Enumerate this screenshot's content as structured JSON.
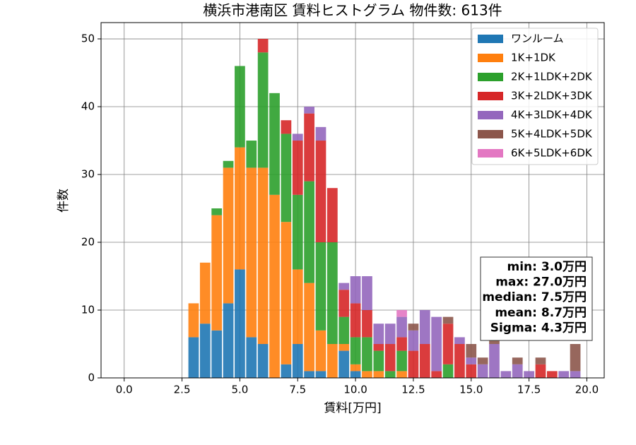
{
  "chart_data": {
    "type": "histogram",
    "stacked": true,
    "title": "横浜市港南区 賃料ヒストグラム 物件数: 613件",
    "xlabel": "賃料[万円]",
    "ylabel": "件数",
    "bins": [
      2.75,
      3.25,
      3.75,
      4.25,
      4.75,
      5.25,
      5.75,
      6.25,
      6.75,
      7.25,
      7.75,
      8.25,
      8.75,
      9.25,
      9.75,
      10.25,
      10.75,
      11.25,
      11.75,
      12.25,
      12.75,
      13.25,
      13.75,
      14.25,
      14.75,
      15.25,
      15.75,
      16.25,
      16.75,
      17.25,
      17.75,
      18.25,
      18.75,
      19.25,
      19.75
    ],
    "series": [
      {
        "name": "ワンルーム",
        "color": "#1f77b4",
        "values": [
          6,
          8,
          7,
          11,
          16,
          6,
          5,
          0,
          2,
          5,
          1,
          1,
          0,
          4,
          1,
          0,
          0,
          0,
          0,
          0,
          0,
          0,
          0,
          0,
          0,
          0,
          0,
          0,
          0,
          0,
          0,
          0,
          0,
          0
        ]
      },
      {
        "name": "1K+1DK",
        "color": "#ff7f0e",
        "values": [
          5,
          9,
          17,
          20,
          18,
          25,
          26,
          27,
          21,
          11,
          13,
          6,
          5,
          1,
          1,
          1,
          1,
          0,
          1,
          0,
          0,
          0,
          0,
          0,
          0,
          0,
          0,
          0,
          0,
          0,
          0,
          0,
          0,
          0
        ]
      },
      {
        "name": "2K+1LDK+2DK",
        "color": "#2ca02c",
        "values": [
          0,
          0,
          1,
          1,
          12,
          4,
          17,
          15,
          13,
          11,
          15,
          13,
          15,
          4,
          4,
          5,
          3,
          1,
          3,
          0,
          0,
          0,
          2,
          0,
          0,
          0,
          0,
          0,
          0,
          0,
          0,
          0,
          0,
          0
        ]
      },
      {
        "name": "3K+2LDK+3DK",
        "color": "#d62728",
        "values": [
          0,
          0,
          0,
          0,
          0,
          0,
          2,
          0,
          2,
          8,
          10,
          15,
          8,
          4,
          5,
          4,
          1,
          4,
          2,
          4,
          5,
          1,
          6,
          5,
          2,
          0,
          0,
          0,
          0,
          0,
          2,
          1,
          0,
          0
        ]
      },
      {
        "name": "4K+3LDK+4DK",
        "color": "#9467bd",
        "values": [
          0,
          0,
          0,
          0,
          0,
          0,
          0,
          0,
          0,
          1,
          1,
          2,
          0,
          1,
          4,
          5,
          3,
          3,
          3,
          3,
          5,
          8,
          0,
          1,
          1,
          2,
          5,
          1,
          2,
          1,
          0,
          0,
          1,
          1
        ]
      },
      {
        "name": "5K+4LDK+5DK",
        "color": "#8c564b",
        "values": [
          0,
          0,
          0,
          0,
          0,
          0,
          0,
          0,
          0,
          0,
          0,
          0,
          0,
          0,
          0,
          0,
          0,
          0,
          0,
          1,
          0,
          0,
          1,
          0,
          2,
          1,
          1,
          0,
          1,
          0,
          1,
          0,
          0,
          4
        ]
      },
      {
        "name": "6K+5LDK+6DK",
        "color": "#e377c2",
        "values": [
          0,
          0,
          0,
          0,
          0,
          0,
          0,
          0,
          0,
          0,
          0,
          0,
          0,
          0,
          0,
          0,
          0,
          0,
          1,
          0,
          0,
          0,
          0,
          0,
          0,
          0,
          0,
          0,
          0,
          0,
          0,
          0,
          0,
          0
        ]
      }
    ],
    "xlim": [
      -1,
      20.75
    ],
    "ylim": [
      0,
      52.4
    ],
    "xticks": [
      {
        "value": 0,
        "label": "0.0"
      },
      2.5,
      {
        "value": 5,
        "label": "5.0"
      },
      7.5,
      {
        "value": 10,
        "label": "10.0"
      },
      12.5,
      {
        "value": 15,
        "label": "15.0"
      },
      17.5,
      {
        "value": 20,
        "label": "20.0"
      }
    ],
    "yticks": [
      0,
      10,
      20,
      30,
      40,
      50
    ],
    "grid": true,
    "legend": "upper right",
    "stats": [
      "min: 3.0万円",
      "max: 27.0万円",
      "median: 7.5万円",
      "mean: 8.7万円",
      "Sigma: 4.3万円"
    ]
  }
}
